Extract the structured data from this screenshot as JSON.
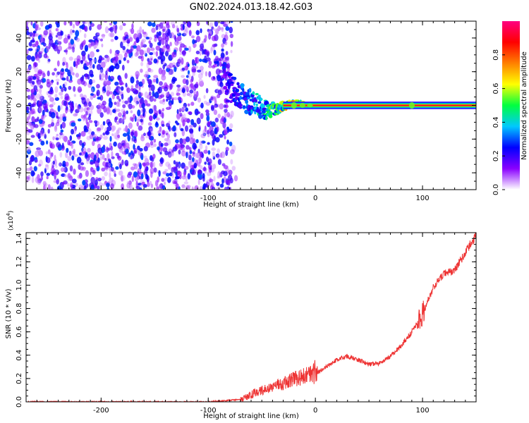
{
  "figure": {
    "title": "GN02.2024.013.18.42.G03"
  },
  "chart_data": [
    {
      "type": "heatmap",
      "xlabel": "Height of straight line (km)",
      "ylabel": "Frequency (Hz)",
      "xlim": [
        -270,
        150
      ],
      "ylim": [
        -50,
        50
      ],
      "x_ticks": [
        -200,
        -100,
        0,
        100
      ],
      "y_ticks": [
        -40,
        -20,
        0,
        20,
        40
      ],
      "colorbar": {
        "label": "Normalized spectral amplitude",
        "range": [
          0,
          1
        ],
        "ticks": [
          "0.0",
          "0.2",
          "0.4",
          "0.6",
          "0.8"
        ],
        "colormap": [
          "#ffffff",
          "#8a00ff",
          "#0000ff",
          "#00c8ff",
          "#00ff40",
          "#ffff00",
          "#ff8000",
          "#ff0000",
          "#ff0080"
        ]
      },
      "regions": {
        "noise_extent_km": [
          -270,
          -78
        ],
        "noise_amplitude": [
          0.05,
          0.3
        ],
        "signal_start_km": -85,
        "signal_end_km": 150
      },
      "signal_ridge": {
        "x": [
          -85,
          -70,
          -55,
          -45,
          -35,
          -25,
          -15,
          0,
          50,
          90,
          150
        ],
        "frequency": [
          12,
          6,
          0,
          -3,
          -2,
          0.5,
          1,
          0.2,
          0,
          0.2,
          0
        ],
        "spread_hz": [
          9,
          8,
          7,
          5,
          3,
          2,
          1.5,
          1,
          1,
          1,
          1
        ],
        "amplitude": [
          0.2,
          0.35,
          0.45,
          0.55,
          0.65,
          0.8,
          0.9,
          0.95,
          0.95,
          0.95,
          0.95
        ]
      }
    },
    {
      "type": "line",
      "xlabel": "Height of straight line (km)",
      "ylabel": "SNR (10 * v/v)",
      "y_scale_note": "(x10",
      "y_scale_exp": "4",
      "y_scale_close": ")",
      "xlim": [
        -270,
        150
      ],
      "ylim": [
        0,
        1.45
      ],
      "x_ticks": [
        -200,
        -100,
        0,
        100
      ],
      "y_ticks": [
        "0.0",
        "0.2",
        "0.4",
        "0.6",
        "0.8",
        "1.0",
        "1.2",
        "1.4"
      ],
      "color": "#ee3333",
      "series": [
        {
          "x": [
            -270,
            -200,
            -100,
            -70,
            -55,
            -40,
            -25,
            -10,
            0,
            10,
            20,
            30,
            40,
            50,
            60,
            70,
            80,
            90,
            100,
            110,
            120,
            130,
            140,
            150
          ],
          "y": [
            0.0,
            0.0,
            0.0,
            0.02,
            0.08,
            0.12,
            0.18,
            0.22,
            0.24,
            0.3,
            0.36,
            0.39,
            0.36,
            0.32,
            0.33,
            0.39,
            0.48,
            0.6,
            0.75,
            0.98,
            1.1,
            1.13,
            1.28,
            1.43
          ]
        }
      ]
    }
  ]
}
